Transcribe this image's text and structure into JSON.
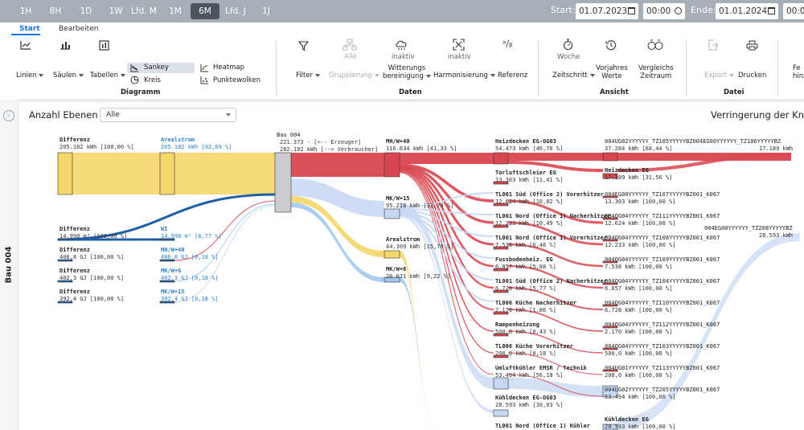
{
  "time_ranges": [
    "1H",
    "8H",
    "1D",
    "1W",
    "Lfd. M",
    "1M",
    "6M",
    "Lfd. J",
    "1J"
  ],
  "time_active": "6M",
  "start_label": "Start:",
  "start_date": "01.07.2023",
  "start_time": "00:00",
  "end_label": "Ende:",
  "end_date": "01.01.2024",
  "end_time": "00:00",
  "tabs": [
    "Start",
    "Bearbeiten"
  ],
  "ribbon": {
    "diagramm": {
      "linien": "Linien",
      "saeulen": "Säulen",
      "tabellen": "Tabellen",
      "sankey": "Sankey",
      "kreis": "Kreis",
      "heatmap": "Heatmap",
      "punktewolken": "Punktewolken",
      "group": "Diagramm"
    },
    "daten": {
      "filter": "Filter",
      "alle": "Alle",
      "gruppierung": "Gruppierung",
      "inaktiv1": "inaktiv",
      "witterung1": "Witterungs",
      "witterung2": "bereinigung",
      "inaktiv2": "inaktiv",
      "harmonisierung": "Harmonisierung",
      "referenz": "Referenz",
      "group": "Daten"
    },
    "ansicht": {
      "woche": "Woche",
      "zeitschritt": "Zeitschritt",
      "vorjahres1": "Vorjahres",
      "vorjahres2": "Werte",
      "vergleichs1": "Vergleichs",
      "vergleichs2": "Zeitraum",
      "group": "Ansicht"
    },
    "datei": {
      "export": "Export",
      "drucken": "Drucken",
      "group": "Datei"
    },
    "cut1": "Fe",
    "cut2": "hinz"
  },
  "sidebar_label": "Bau 004",
  "levels_label": "Anzahl Ebenen",
  "levels_value": "Alle",
  "chart_title": "Verringerung der Knot",
  "colors": {
    "yellow": "#f5d66b",
    "red": "#d94650",
    "lightblue": "#c6d7f2",
    "blue": "#1f5fa8",
    "skyblue": "#9fc9ee",
    "grey": "#c9cbcf"
  },
  "chart_data": {
    "type": "sankey",
    "nodes_col1": [
      {
        "name": "Differenz",
        "value": "205.182 kWh [100,00 %]"
      },
      {
        "name": "Differenz",
        "value": "14.990 m³ [100,00 %]"
      },
      {
        "name": "Differenz",
        "value": "406,8 GJ [100,00 %]"
      },
      {
        "name": "Differenz",
        "value": "402,3 GJ [100,00 %]"
      },
      {
        "name": "Differenz",
        "value": "392,4 GJ [100,00 %]"
      }
    ],
    "nodes_col2": [
      {
        "name": "Arealstrom",
        "value": "205.182 kWh [92,69 %]"
      },
      {
        "name": "WI",
        "value": "14.990 m³ [6,77 %]"
      },
      {
        "name": "MH/W+40",
        "value": "406,8 GJ [0,18 %]"
      },
      {
        "name": "MK/W+6",
        "value": "402,3 GJ [0,18 %]"
      },
      {
        "name": "MK/W+15",
        "value": "392,4 GJ [0,18 %]"
      }
    ],
    "bau": {
      "name": "Bau 004",
      "line1": "221.373 - [<-- Erzeuger]",
      "line2": "282.192 kWh [--> Verbraucher]"
    },
    "nodes_col4": [
      {
        "name": "MH/W+40",
        "value": "116.634 kWh [41,33 %]"
      },
      {
        "name": "MK/W+15",
        "value": "95.218 kWh [33,74 %]"
      },
      {
        "name": "Arealstrom",
        "value": "44.309 kWh [15,70 %]"
      },
      {
        "name": "MK/W+6",
        "value": "26.031 kWh [9,22 %]"
      }
    ],
    "nodes_col5": [
      {
        "name": "Heizdecken EG-OG03",
        "value": "54.473 kWh [46,70 %]"
      },
      {
        "name": "Torluftschleier EG",
        "value": "13.303 kWh [11,41 %]"
      },
      {
        "name": "TL001 Süd (Office 2) Vorerhitzer",
        "value": "12.624 kWh [10,82 %]"
      },
      {
        "name": "TL001 Nord (Office 1) Nacherhitzer",
        "value": "12.233 kWh [10,49 %]"
      },
      {
        "name": "TL001 Nord (Office 1) Vorerhitzer",
        "value": "7.538 kWh [6,46 %]"
      },
      {
        "name": "Fussbodenheiz. EG",
        "value": "6.857 kWh [5,88 %]"
      },
      {
        "name": "TL001 Süd (Office 2) Nacherhitzer",
        "value": "6.728 kWh [5,77 %]"
      },
      {
        "name": "TL006 Küche Nacherhitzer",
        "value": "2.170 kWh [1,86 %]"
      },
      {
        "name": "Rampenheizung",
        "value": "500,0 kWh [0,43 %]"
      },
      {
        "name": "TL006 Küche Vorerhitzer",
        "value": "208,0 kWh [0,18 %]"
      },
      {
        "name": "Umluftkühler EMSR / Technik",
        "value": "53.494 kWh [56,18 %]"
      },
      {
        "name": "Kühldecken EG-OG03",
        "value": "28.593 kWh [30,03 %]"
      },
      {
        "name": "TL001 Nord (Office 1) Kühler",
        "value": ""
      }
    ],
    "nodes_col6": [
      {
        "name": "004UG02YYYYYY_TZ105YYYYYBZ004EG00YYYYYY_TZ106YYYYYBZ",
        "value": "37.284 kWh [68,44 %]"
      },
      {
        "name": "Heizdecken EG",
        "value": "17.189 kWh [31,56 %]"
      },
      {
        "name": "004EG00YYYYYY_TZ107YYYYYBZ001_K067",
        "value": "13.303 kWh [100,00 %]"
      },
      {
        "name": "004OG04YYYYYY_TZ111YYYYYBZ001_K067",
        "value": "12.624 kWh [100,00 %]"
      },
      {
        "name": "004OG04YYYYYY_TZ108YYYYYBZ001_K067",
        "value": "12.233 kWh [100,00 %]"
      },
      {
        "name": "004OG04YYYYYY_TZ109YYYYYBZ001_K067",
        "value": "7.538 kWh [100,00 %]"
      },
      {
        "name": "004OG04YYYYYY_TZ104YYYYYBZ001_K067",
        "value": "6.857 kWh [100,00 %]"
      },
      {
        "name": "004OG04YYYYYY_TZ110YYYYYBZ001_K067",
        "value": "6.728 kWh [100,00 %]"
      },
      {
        "name": "004OG04YYYYYY_TZ112YYYYYBZ001_K067",
        "value": "2.170 kWh [100,00 %]"
      },
      {
        "name": "004OG04YYYYYY_TZ103YYYYYBZ001_K067",
        "value": "500,0 kWh [100,00 %]"
      },
      {
        "name": "004UG01YYYYYY_TZ113YYYYYBZ001_K067",
        "value": "208,0 kWh [100,00 %]"
      },
      {
        "name": "004UG02YYYYYY_TZ205YYYYYBZ001_K067",
        "value": "53.494 kWh [100,00 %]"
      },
      {
        "name": "Kühldecken EG",
        "value": "28.593 kWh [100,00 %]"
      }
    ],
    "nodes_col7": [
      {
        "name": "004EG00YYYYYY_TZ106YYYYYBZ",
        "value": "17.189 kWh"
      },
      {
        "name": "004EG00YYYYYY_TZ208YYYYYBZ",
        "value": "28.593 kWh"
      }
    ]
  }
}
